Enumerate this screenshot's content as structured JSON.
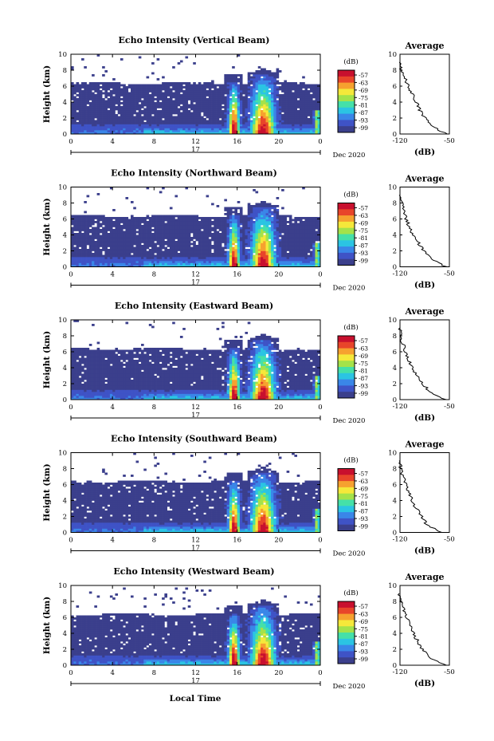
{
  "figure": {
    "xlabel": "Local Time",
    "x_ticks": [
      "0",
      "4",
      "8",
      "12",
      "16",
      "20",
      "0"
    ],
    "y_ticks": [
      "0",
      "2",
      "4",
      "6",
      "8",
      "10"
    ],
    "ylabel": "Height (km)",
    "day_label": "17",
    "date_label": "Dec 2020",
    "colorbar_unit": "(dB)",
    "colorbar_ticks": [
      "-57",
      "-63",
      "-69",
      "-75",
      "-81",
      "-87",
      "-93",
      "-99"
    ],
    "avg_title": "Average",
    "avg_xlabel": "(dB)",
    "avg_x_ticks": [
      "-120",
      "-50"
    ],
    "colors": {
      "background": "#3b3f8c",
      "colormap": [
        "#3b3f8c",
        "#3f53c6",
        "#3a86e8",
        "#2bc4e3",
        "#45e0a8",
        "#a4e24a",
        "#f5e83a",
        "#f6a12f",
        "#e8452a",
        "#c8102e"
      ]
    }
  },
  "panels": [
    {
      "title": "Echo Intensity (Vertical Beam)"
    },
    {
      "title": "Echo Intensity (Northward Beam)"
    },
    {
      "title": "Echo Intensity (Eastward Beam)"
    },
    {
      "title": "Echo Intensity (Southward Beam)"
    },
    {
      "title": "Echo Intensity (Westward Beam)"
    }
  ],
  "chart_data": [
    {
      "type": "heatmap",
      "title": "Echo Intensity (Vertical Beam)",
      "xlabel": "Local Time",
      "ylabel": "Height (km)",
      "xlim": [
        0,
        24
      ],
      "ylim": [
        0,
        10
      ],
      "colorbar_range_db": [
        -99,
        -57
      ],
      "average_profile": {
        "xlim": [
          -120,
          -50
        ],
        "height_km": [
          0,
          1,
          2,
          3,
          4,
          5,
          6,
          7,
          8,
          9
        ],
        "db": [
          -55,
          -75,
          -84,
          -92,
          -97,
          -103,
          -108,
          -113,
          -118,
          -121
        ]
      }
    },
    {
      "type": "heatmap",
      "title": "Echo Intensity (Northward Beam)",
      "xlabel": "Local Time",
      "ylabel": "Height (km)",
      "xlim": [
        0,
        24
      ],
      "ylim": [
        0,
        10
      ],
      "colorbar_range_db": [
        -99,
        -57
      ],
      "average_profile": {
        "xlim": [
          -120,
          -50
        ],
        "height_km": [
          0,
          1,
          2,
          3,
          4,
          5,
          6,
          7,
          8,
          9
        ],
        "db": [
          -55,
          -76,
          -86,
          -94,
          -101,
          -107,
          -111,
          -115,
          -118,
          -121
        ]
      }
    },
    {
      "type": "heatmap",
      "title": "Echo Intensity (Eastward Beam)",
      "xlabel": "Local Time",
      "ylabel": "Height (km)",
      "xlim": [
        0,
        24
      ],
      "ylim": [
        0,
        10
      ],
      "colorbar_range_db": [
        -99,
        -57
      ],
      "average_profile": {
        "xlim": [
          -120,
          -50
        ],
        "height_km": [
          0,
          1,
          2,
          3,
          4,
          5,
          6,
          7,
          8,
          9
        ],
        "db": [
          -56,
          -78,
          -88,
          -96,
          -103,
          -108,
          -112,
          -116,
          -119,
          -120
        ]
      }
    },
    {
      "type": "heatmap",
      "title": "Echo Intensity (Southward Beam)",
      "xlabel": "Local Time",
      "ylabel": "Height (km)",
      "xlim": [
        0,
        24
      ],
      "ylim": [
        0,
        10
      ],
      "colorbar_range_db": [
        -99,
        -57
      ],
      "average_profile": {
        "xlim": [
          -120,
          -50
        ],
        "height_km": [
          0,
          1,
          2,
          3,
          4,
          5,
          6,
          7,
          8,
          9
        ],
        "db": [
          -62,
          -82,
          -90,
          -97,
          -103,
          -108,
          -112,
          -116,
          -119,
          -121
        ]
      }
    },
    {
      "type": "heatmap",
      "title": "Echo Intensity (Westward Beam)",
      "xlabel": "Local Time",
      "ylabel": "Height (km)",
      "xlim": [
        0,
        24
      ],
      "ylim": [
        0,
        10
      ],
      "colorbar_range_db": [
        -99,
        -57
      ],
      "average_profile": {
        "xlim": [
          -120,
          -50
        ],
        "height_km": [
          0,
          1,
          2,
          3,
          4,
          5,
          6,
          7,
          8,
          9
        ],
        "db": [
          -55,
          -78,
          -88,
          -95,
          -101,
          -106,
          -111,
          -115,
          -119,
          -121
        ]
      }
    }
  ]
}
